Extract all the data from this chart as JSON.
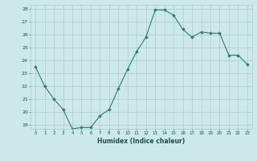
{
  "x": [
    0,
    1,
    2,
    3,
    4,
    5,
    6,
    7,
    8,
    9,
    10,
    11,
    12,
    13,
    14,
    15,
    16,
    17,
    18,
    19,
    20,
    21,
    22,
    23
  ],
  "y": [
    23.5,
    22.0,
    21.0,
    20.2,
    18.7,
    18.8,
    18.8,
    19.7,
    20.2,
    21.8,
    23.3,
    24.7,
    25.8,
    27.9,
    27.9,
    27.5,
    26.4,
    25.8,
    26.2,
    26.1,
    26.1,
    24.4,
    24.4,
    23.7
  ],
  "xlabel": "Humidex (Indice chaleur)",
  "ylim": [
    19,
    28
  ],
  "xlim": [
    0,
    23
  ],
  "yticks": [
    19,
    20,
    21,
    22,
    23,
    24,
    25,
    26,
    27,
    28
  ],
  "xticks": [
    0,
    1,
    2,
    3,
    4,
    5,
    6,
    7,
    8,
    9,
    10,
    11,
    12,
    13,
    14,
    15,
    16,
    17,
    18,
    19,
    20,
    21,
    22,
    23
  ],
  "line_color": "#2e7d6e",
  "marker_color": "#2e7d6e",
  "bg_color": "#cce8e8",
  "grid_color": "#aacccc",
  "text_color": "#1a5050"
}
